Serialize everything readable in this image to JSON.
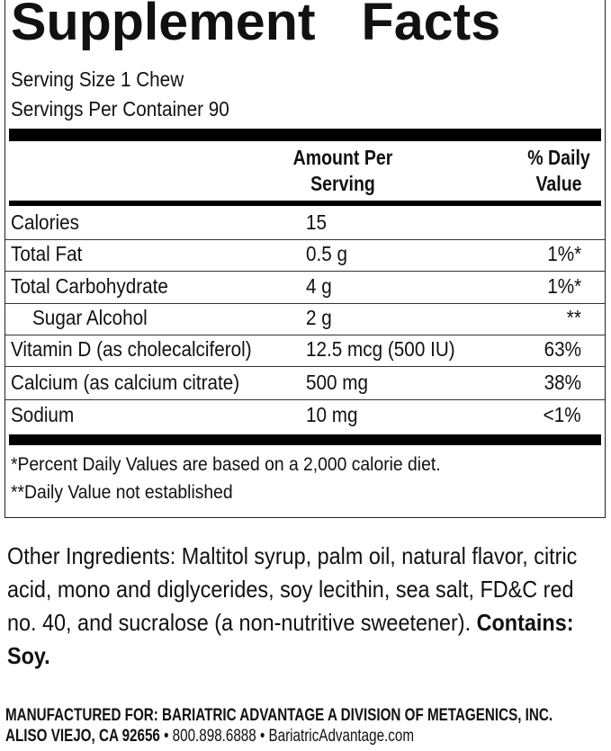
{
  "title": "Supplement Facts",
  "title_words": [
    "Supplement",
    "Facts"
  ],
  "serving_size": "Serving Size 1 Chew",
  "servings_per_container": "Servings Per Container 90",
  "headers": {
    "amount": [
      "Amount Per",
      "Serving"
    ],
    "dv": [
      "% Daily",
      "Value"
    ]
  },
  "rows": [
    {
      "name": "Calories",
      "amount": "15",
      "dv": ""
    },
    {
      "name": "Total Fat",
      "amount": "0.5 g",
      "dv": "1%*"
    },
    {
      "name": "Total Carbohydrate",
      "amount": "4 g",
      "dv": "1%*"
    },
    {
      "name": "Sugar Alcohol",
      "amount": "2 g",
      "dv": "**",
      "indent": true
    },
    {
      "name": "Vitamin D (as cholecalciferol)",
      "amount": "12.5 mcg (500 IU)",
      "dv": "63%"
    },
    {
      "name": "Calcium (as calcium citrate)",
      "amount": "500 mg",
      "dv": "38%"
    },
    {
      "name": "Sodium",
      "amount": "10 mg",
      "dv": "<1%"
    }
  ],
  "footnotes": [
    "*Percent Daily Values are based on a 2,000 calorie diet.",
    "**Daily Value not established"
  ],
  "other_ingredients": "Other Ingredients: Maltitol syrup, palm oil, natural flavor, citric acid, mono and diglycerides, soy lecithin, sea salt, FD&C red no. 40, and sucralose (a non-nutritive sweetener).",
  "contains": "Contains: Soy.",
  "manufacturer": "MANUFACTURED FOR: BARIATRIC ADVANTAGE A DIVISION OF METAGENICS, INC.",
  "address": {
    "city": "ALISO VIEJO, CA 92656",
    "phone": "800.898.6888",
    "website": "BariatricAdvantage.com",
    "separator": "•"
  }
}
